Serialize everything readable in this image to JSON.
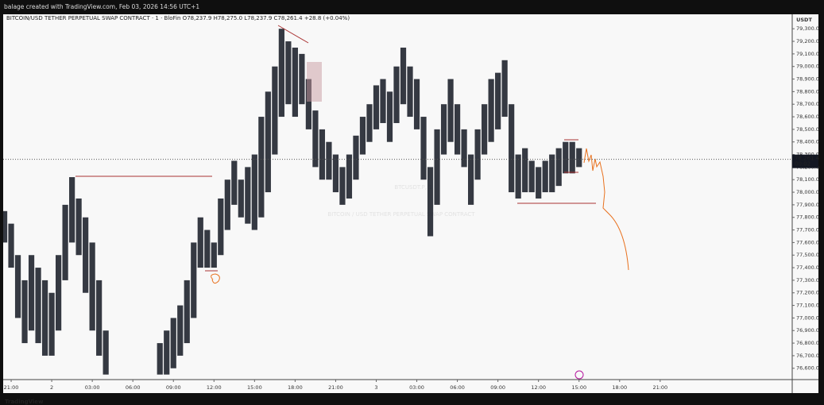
{
  "header": "balage created with TradingView.com, Feb 03, 2026 14:56 UTC+1",
  "footer": "TradingView",
  "chart_data": {
    "type": "range",
    "legend_text": "BITCOIN/USD TETHER PERPETUAL SWAP CONTRACT · 1 · BloFin  O78,237.9  H78,275.0  L78,237.9  C78,261.4  +28.8 (+0.04%)",
    "watermark": "BTCUSDT.P, 1",
    "watermark_subtitle": "BITCOIN / USD TETHER PERPETUAL SWAP CONTRACT",
    "currency": "USDT",
    "countdown": "00:02",
    "last_price": {
      "value": 78261.4,
      "label": "78,261.4"
    },
    "color": "#131722",
    "high": [
      77850,
      77750,
      77500,
      77300,
      77500,
      77400,
      77300,
      77200,
      77500,
      77900,
      78120,
      77950,
      77800,
      77600,
      77300,
      76900,
      null,
      null,
      null,
      null,
      null,
      null,
      null,
      76800,
      76900,
      77000,
      77100,
      77300,
      77600,
      77800,
      77700,
      77600,
      77950,
      78100,
      78250,
      78100,
      78200,
      78300,
      78600,
      78800,
      79000,
      79300,
      79200,
      79150,
      79100,
      78900,
      78650,
      78500,
      78400,
      78300,
      78200,
      78300,
      78450,
      78600,
      78700,
      78850,
      78900,
      78800,
      79000,
      79150,
      79000,
      78900,
      78600,
      78200,
      78500,
      78700,
      78900,
      78700,
      78500,
      78300,
      78500,
      78700,
      78900,
      78950,
      79050,
      78700,
      78300,
      78350,
      78250,
      78200,
      78250,
      78300,
      78350,
      78400,
      78400,
      78350
    ],
    "low": [
      77600,
      77400,
      77000,
      76800,
      76900,
      76800,
      76700,
      76700,
      76900,
      77300,
      77600,
      77500,
      77200,
      76900,
      76700,
      76550,
      null,
      null,
      null,
      null,
      null,
      null,
      null,
      76550,
      76550,
      76600,
      76700,
      76800,
      77000,
      77400,
      77400,
      77400,
      77500,
      77700,
      77900,
      77800,
      77750,
      77700,
      77800,
      78000,
      78300,
      78600,
      78700,
      78600,
      78700,
      78500,
      78200,
      78100,
      78100,
      78000,
      77900,
      77950,
      78100,
      78300,
      78400,
      78500,
      78550,
      78400,
      78550,
      78700,
      78600,
      78500,
      78100,
      77650,
      77900,
      78300,
      78400,
      78300,
      78200,
      77900,
      78100,
      78300,
      78400,
      78500,
      78600,
      78000,
      77950,
      78000,
      78000,
      77950,
      78000,
      78000,
      78050,
      78150,
      78150,
      78200
    ],
    "xlim": [
      -0.18,
      116.53
    ],
    "xticks": [
      {
        "value": 1,
        "label": "21:00"
      },
      {
        "value": 7,
        "label": "2"
      },
      {
        "value": 13,
        "label": "03:00"
      },
      {
        "value": 19,
        "label": "06:00"
      },
      {
        "value": 25,
        "label": "09:00"
      },
      {
        "value": 31,
        "label": "12:00"
      },
      {
        "value": 37,
        "label": "15:00"
      },
      {
        "value": 43,
        "label": "18:00"
      },
      {
        "value": 49,
        "label": "21:00"
      },
      {
        "value": 55,
        "label": "3"
      },
      {
        "value": 61,
        "label": "03:00"
      },
      {
        "value": 67,
        "label": "06:00"
      },
      {
        "value": 73,
        "label": "09:00"
      },
      {
        "value": 79,
        "label": "12:00"
      },
      {
        "value": 85,
        "label": "15:00"
      },
      {
        "value": 91,
        "label": "18:00"
      },
      {
        "value": 97,
        "label": "21:00"
      }
    ],
    "ylim": [
      76510,
      79415
    ],
    "yticks": [
      {
        "value": 76600,
        "label": "76,600.0"
      },
      {
        "value": 76700,
        "label": "76,700.0"
      },
      {
        "value": 76800,
        "label": "76,800.0"
      },
      {
        "value": 76900,
        "label": "76,900.0"
      },
      {
        "value": 77000,
        "label": "77,000.0"
      },
      {
        "value": 77100,
        "label": "77,100.0"
      },
      {
        "value": 77200,
        "label": "77,200.0"
      },
      {
        "value": 77300,
        "label": "77,300.0"
      },
      {
        "value": 77400,
        "label": "77,400.0"
      },
      {
        "value": 77500,
        "label": "77,500.0"
      },
      {
        "value": 77600,
        "label": "77,600.0"
      },
      {
        "value": 77700,
        "label": "77,700.0"
      },
      {
        "value": 77800,
        "label": "77,800.0"
      },
      {
        "value": 77900,
        "label": "77,900.0"
      },
      {
        "value": 78000,
        "label": "78,000.0"
      },
      {
        "value": 78100,
        "label": "78,100.0"
      },
      {
        "value": 78200,
        "label": "78,200.0"
      },
      {
        "value": 78300,
        "label": "78,300.0"
      },
      {
        "value": 78400,
        "label": "78,400.0"
      },
      {
        "value": 78500,
        "label": "78,500.0"
      },
      {
        "value": 78600,
        "label": "78,600.0"
      },
      {
        "value": 78700,
        "label": "78,700.0"
      },
      {
        "value": 78800,
        "label": "78,800.0"
      },
      {
        "value": 78900,
        "label": "78,900.0"
      },
      {
        "value": 79000,
        "label": "79,000.0"
      },
      {
        "value": 79100,
        "label": "79,100.0"
      },
      {
        "value": 79200,
        "label": "79,200.0"
      },
      {
        "value": 79300,
        "label": "79,300.0"
      }
    ]
  }
}
